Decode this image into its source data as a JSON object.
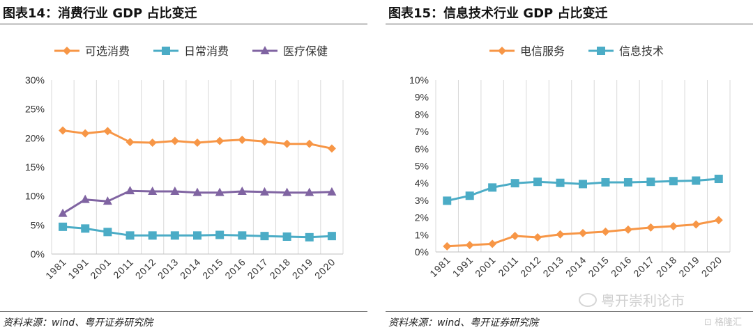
{
  "figures": [
    {
      "title": "图表14：消费行业 GDP 占比变迁",
      "source": "资料来源：wind、粤开证券研究院"
    },
    {
      "title": "图表15：信息技术行业 GDP 占比变迁",
      "source": "资料来源：wind、粤开证券研究院"
    }
  ],
  "watermark": "粤开崇利论市",
  "logo": "格隆汇",
  "chart_data": [
    {
      "type": "line",
      "x": [
        "1981",
        "1991",
        "2001",
        "2011",
        "2012",
        "2013",
        "2014",
        "2015",
        "2016",
        "2017",
        "2018",
        "2019",
        "2020"
      ],
      "series": [
        {
          "name": "可选消费",
          "color": "#F79646",
          "marker": "diamond",
          "values": [
            21.3,
            20.8,
            21.2,
            19.3,
            19.2,
            19.5,
            19.2,
            19.5,
            19.7,
            19.4,
            19.0,
            19.0,
            18.2
          ]
        },
        {
          "name": "日常消费",
          "color": "#4BACC6",
          "marker": "square",
          "values": [
            4.7,
            4.4,
            3.8,
            3.2,
            3.2,
            3.2,
            3.2,
            3.3,
            3.2,
            3.1,
            3.0,
            2.9,
            3.1
          ]
        },
        {
          "name": "医疗保健",
          "color": "#8064A2",
          "marker": "triangle",
          "values": [
            7.0,
            9.4,
            9.1,
            10.9,
            10.8,
            10.8,
            10.6,
            10.6,
            10.8,
            10.7,
            10.6,
            10.6,
            10.7
          ]
        }
      ],
      "yticks": [
        "0%",
        "5%",
        "10%",
        "15%",
        "20%",
        "25%",
        "30%"
      ],
      "ylim": [
        0,
        30
      ],
      "grid": "vertical",
      "legend": "top"
    },
    {
      "type": "line",
      "x": [
        "1981",
        "1991",
        "2001",
        "2011",
        "2012",
        "2013",
        "2014",
        "2015",
        "2016",
        "2017",
        "2018",
        "2019",
        "2020"
      ],
      "series": [
        {
          "name": "电信服务",
          "color": "#F79646",
          "marker": "diamond",
          "values": [
            0.33,
            0.4,
            0.47,
            0.93,
            0.85,
            1.02,
            1.1,
            1.18,
            1.3,
            1.42,
            1.5,
            1.6,
            1.85
          ]
        },
        {
          "name": "信息技术",
          "color": "#4BACC6",
          "marker": "square",
          "values": [
            2.98,
            3.27,
            3.75,
            4.0,
            4.08,
            4.02,
            3.95,
            4.05,
            4.05,
            4.08,
            4.12,
            4.15,
            4.25
          ]
        }
      ],
      "yticks": [
        "0%",
        "1%",
        "2%",
        "3%",
        "4%",
        "5%",
        "6%",
        "7%",
        "8%",
        "9%",
        "10%"
      ],
      "ylim": [
        0,
        10
      ],
      "grid": "vertical",
      "legend": "top"
    }
  ]
}
